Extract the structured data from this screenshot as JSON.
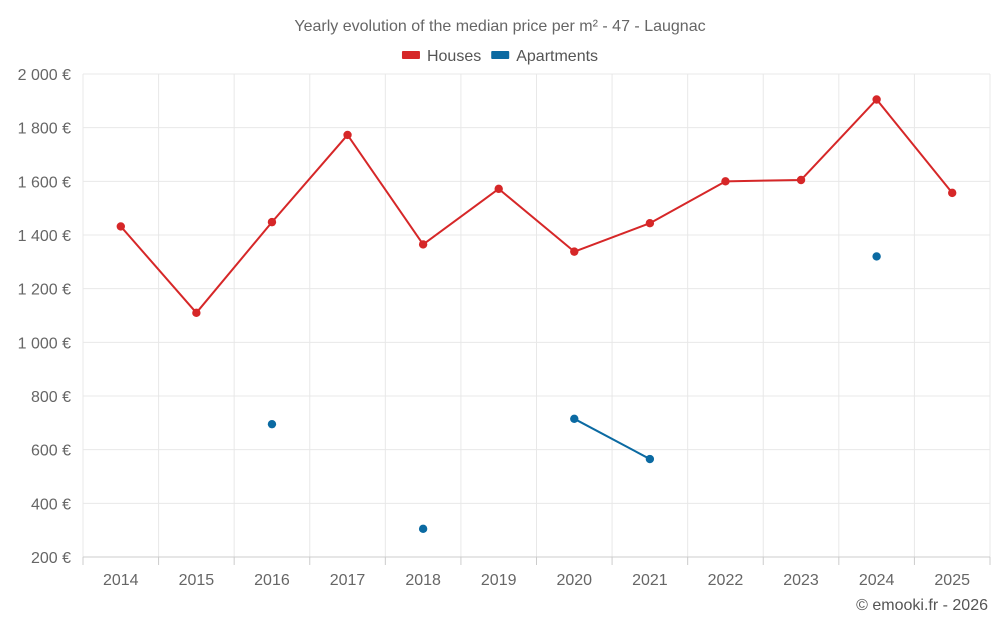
{
  "chart_data": {
    "type": "line",
    "title": "Yearly evolution of the median price per m² - 47 - Laugnac",
    "categories": [
      "2014",
      "2015",
      "2016",
      "2017",
      "2018",
      "2019",
      "2020",
      "2021",
      "2022",
      "2023",
      "2024",
      "2025"
    ],
    "series": [
      {
        "name": "Houses",
        "color": "#d62728",
        "values": [
          1432,
          1110,
          1448,
          1773,
          1365,
          1572,
          1338,
          1444,
          1600,
          1605,
          1905,
          1557
        ]
      },
      {
        "name": "Apartments",
        "color": "#0b6aa2",
        "values": [
          null,
          null,
          695,
          null,
          305,
          null,
          715,
          565,
          null,
          null,
          1320,
          null
        ]
      }
    ],
    "ylim": [
      200,
      2000
    ],
    "yticks": [
      200,
      400,
      600,
      800,
      1000,
      1200,
      1400,
      1600,
      1800,
      2000
    ],
    "ytick_labels": [
      "200 €",
      "400 €",
      "600 €",
      "800 €",
      "1 000 €",
      "1 200 €",
      "1 400 €",
      "1 600 €",
      "1 800 €",
      "2 000 €"
    ],
    "xlabel": "",
    "ylabel": "",
    "grid": true,
    "legend": "top-center"
  },
  "credit": "© emooki.fr - 2026"
}
